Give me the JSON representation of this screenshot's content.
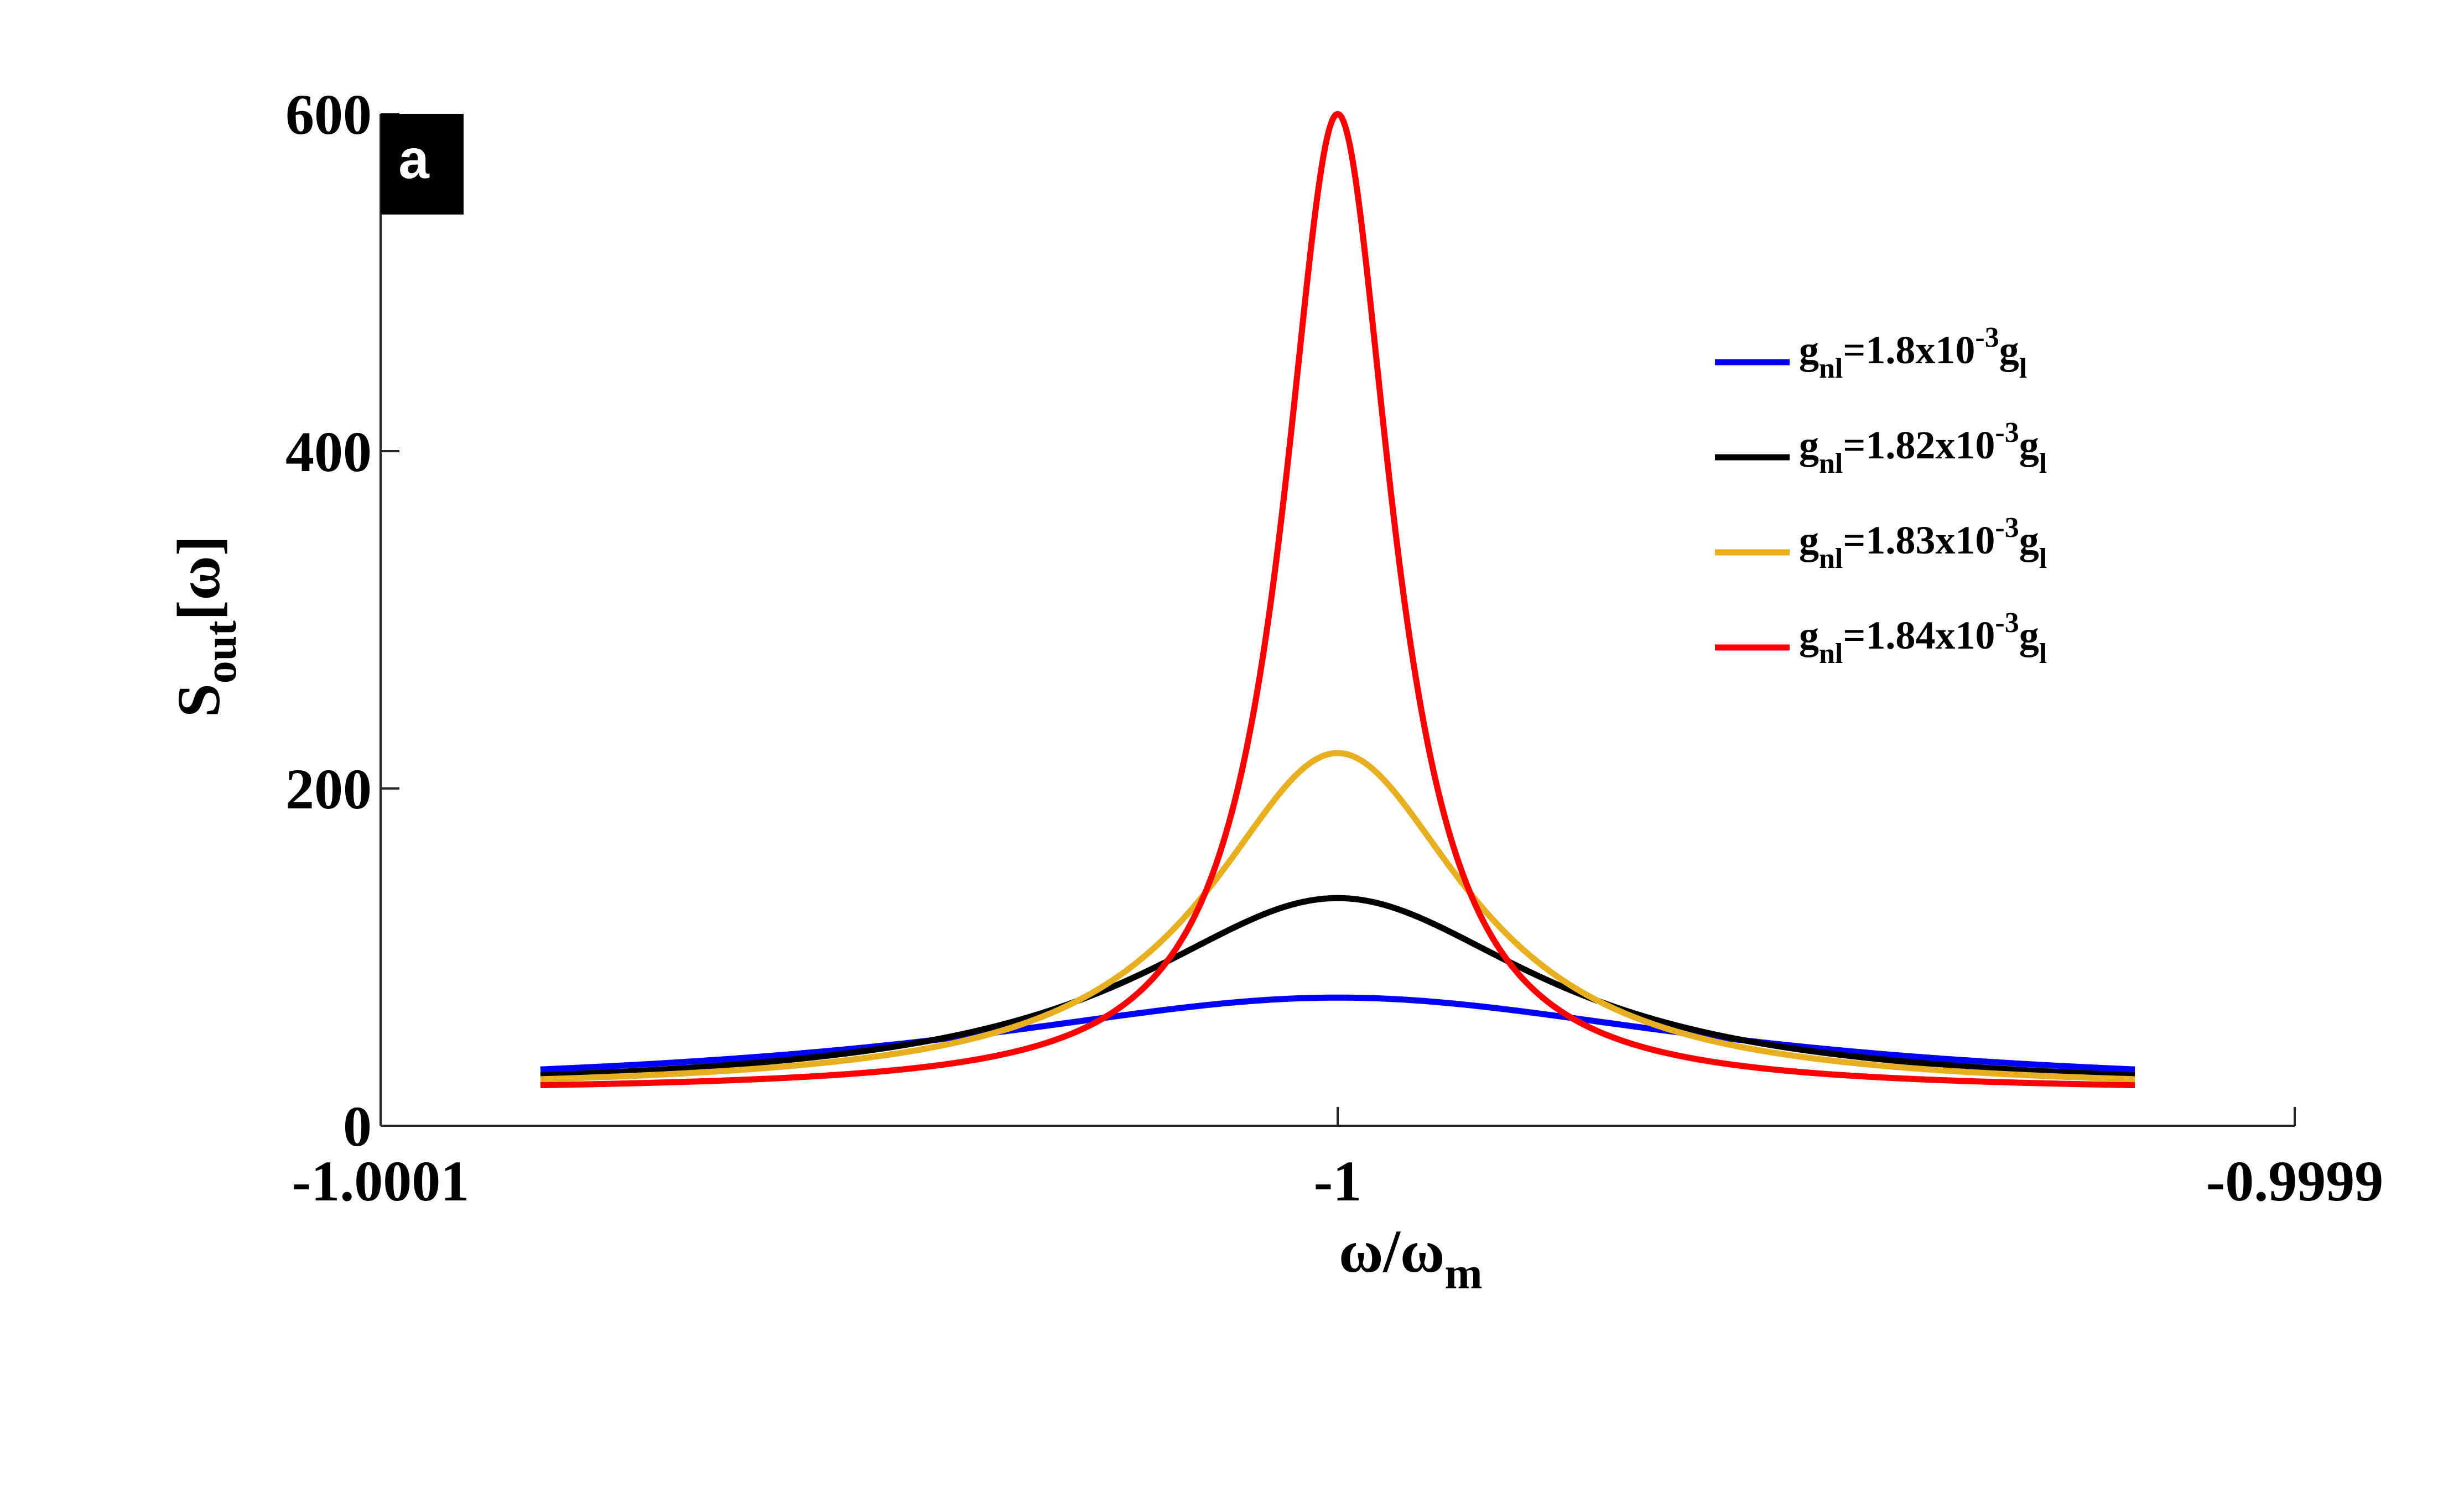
{
  "chart_data": {
    "type": "line",
    "panel_label": "a",
    "xlabel": {
      "main": "ω/ω",
      "sub": "m"
    },
    "ylabel": {
      "main": "S",
      "sub": "out",
      "tail": "[ω]"
    },
    "xlim": [
      -1.0001,
      -0.9999
    ],
    "ylim": [
      0,
      600
    ],
    "xticks": [
      -1.0001,
      -1,
      -0.9999
    ],
    "xtick_labels": [
      "-1.0001",
      "-1",
      "-0.9999"
    ],
    "yticks": [
      0,
      200,
      400,
      600
    ],
    "ytick_labels": [
      "0",
      "200",
      "400",
      "600"
    ],
    "x_range": [
      -1.0000833,
      -0.9999167
    ],
    "center": -1.0,
    "background": 20.0,
    "legend": [
      {
        "pre": "g",
        "sub1": "nl",
        "mid": "=1.8x10",
        "sup": "-3",
        "post": "g",
        "sub2": "l"
      },
      {
        "pre": "g",
        "sub1": "nl",
        "mid": "=1.82x10",
        "sup": "-3",
        "post": "g",
        "sub2": "l"
      },
      {
        "pre": "g",
        "sub1": "nl",
        "mid": "=1.83x10",
        "sup": "-3",
        "post": "g",
        "sub2": "l"
      },
      {
        "pre": "g",
        "sub1": "nl",
        "mid": "=1.84x10",
        "sup": "-3",
        "post": "g",
        "sub2": "l"
      }
    ],
    "series": [
      {
        "name": "g_nl=1.8x10^-3 g_l",
        "color": "#0000ff",
        "peak": 76,
        "gamma": 4.67e-05
      },
      {
        "name": "g_nl=1.82x10^-3 g_l",
        "color": "#000000",
        "peak": 135,
        "gamma": 2.56e-05
      },
      {
        "name": "g_nl=1.83x10^-3 g_l",
        "color": "#e8b020",
        "peak": 221,
        "gamma": 1.65e-05
      },
      {
        "name": "g_nl=1.84x10^-3 g_l",
        "color": "#ff0000",
        "peak": 600,
        "gamma": 7e-06
      }
    ]
  }
}
